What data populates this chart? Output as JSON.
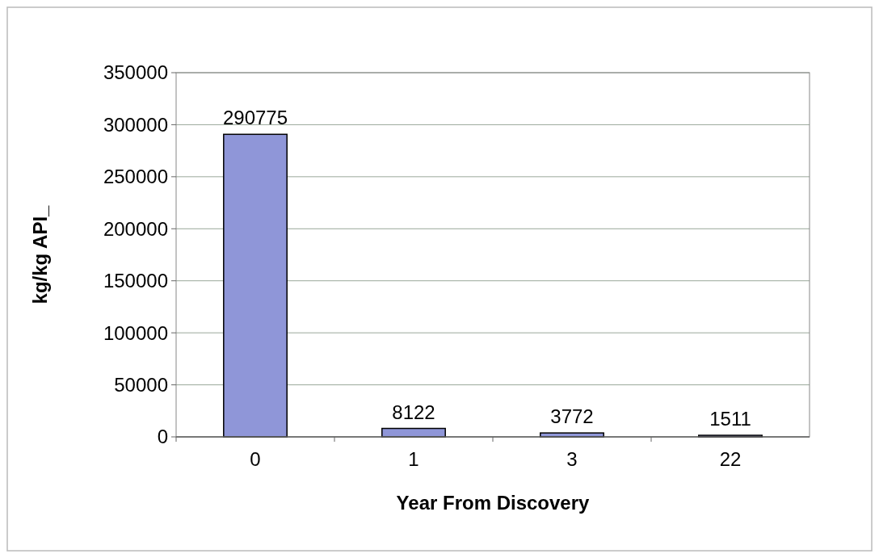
{
  "chart_data": {
    "type": "bar",
    "xlabel": "Year From Discovery",
    "ylabel": "kg/kg API_",
    "categories": [
      "0",
      "1",
      "3",
      "22"
    ],
    "values": [
      290775,
      8122,
      3772,
      1511
    ],
    "color": "#8f96d8",
    "ylim": [
      0,
      350000
    ],
    "yticks": [
      0,
      50000,
      100000,
      150000,
      200000,
      250000,
      300000,
      350000
    ],
    "grid": "y",
    "data_labels": true
  }
}
